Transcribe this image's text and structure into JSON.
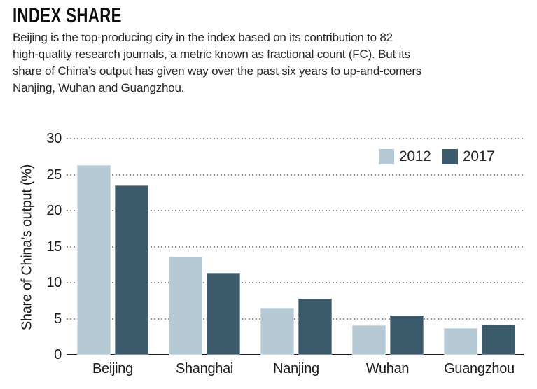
{
  "header": {
    "title": "INDEX SHARE",
    "description": "Beijing is the top-producing city in the index based on its contribution to 82\nhigh-quality research journals, a metric known as fractional count (FC). But its\nshare of China’s output has given way over the past six years to up-and-comers\nNanjing, Wuhan and Guangzhou."
  },
  "chart_data": {
    "type": "bar",
    "title": "INDEX SHARE",
    "categories": [
      "Beijing",
      "Shanghai",
      "Nanjing",
      "Wuhan",
      "Guangzhou"
    ],
    "series": [
      {
        "name": "2012",
        "color": "#b5cad5",
        "values": [
          26.3,
          13.6,
          6.5,
          4.1,
          3.7
        ]
      },
      {
        "name": "2017",
        "color": "#3b5b6d",
        "values": [
          23.5,
          11.4,
          7.8,
          5.4,
          4.2
        ]
      }
    ],
    "xlabel": "",
    "ylabel": "Share of China’s output (%)",
    "yticks": [
      0,
      5,
      10,
      15,
      20,
      25,
      30
    ],
    "ylim": [
      0,
      30
    ],
    "grid": "horizontal-dotted",
    "legend_position": "top-right",
    "colors": {
      "grid_dots": "#8d8d8d",
      "axis_line": "#1a1a1a",
      "text": "#1a1a1a"
    }
  }
}
